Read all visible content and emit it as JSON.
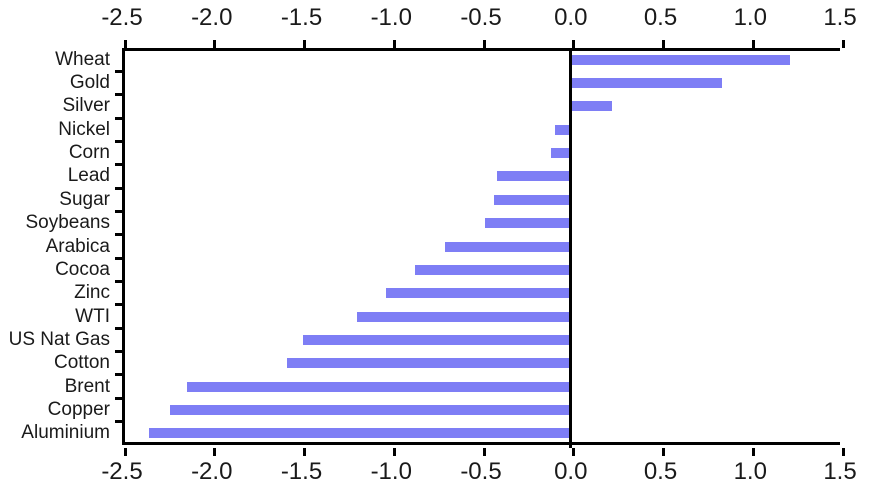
{
  "chart_data": {
    "type": "bar",
    "orientation": "horizontal",
    "title": "",
    "xlabel": "",
    "ylabel": "",
    "categories": [
      "Wheat",
      "Gold",
      "Silver",
      "Nickel",
      "Corn",
      "Lead",
      "Sugar",
      "Soybeans",
      "Arabica",
      "Cocoa",
      "Zinc",
      "WTI",
      "US Nat Gas",
      "Cotton",
      "Brent",
      "Copper",
      "Aluminium"
    ],
    "values": [
      1.22,
      0.84,
      0.23,
      -0.09,
      -0.11,
      -0.41,
      -0.43,
      -0.48,
      -0.7,
      -0.87,
      -1.03,
      -1.19,
      -1.49,
      -1.58,
      -2.14,
      -2.23,
      -2.35
    ],
    "xlim": [
      -2.5,
      1.5
    ],
    "x_ticks": [
      -2.5,
      -2.0,
      -1.5,
      -1.0,
      -0.5,
      0.0,
      0.5,
      1.0,
      1.5
    ],
    "x_tick_labels": [
      "-2.5",
      "-2.0",
      "-1.5",
      "-1.0",
      "-0.5",
      "0.0",
      "0.5",
      "1.0",
      "1.5"
    ],
    "x_tick_label_positions": [
      "top",
      "bottom"
    ],
    "grid": false,
    "legend": false,
    "bar_color": "#7e7ef5",
    "axis_color": "#000000",
    "text_color": "#1a1a1a"
  }
}
